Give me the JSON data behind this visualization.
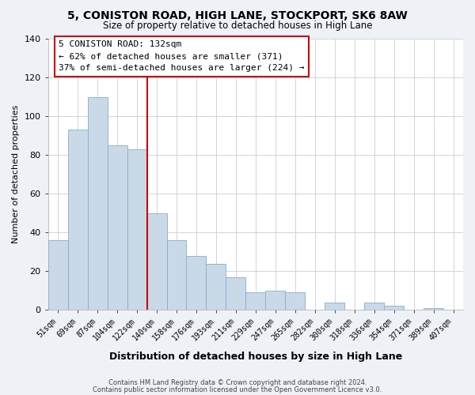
{
  "title": "5, CONISTON ROAD, HIGH LANE, STOCKPORT, SK6 8AW",
  "subtitle": "Size of property relative to detached houses in High Lane",
  "xlabel": "Distribution of detached houses by size in High Lane",
  "ylabel": "Number of detached properties",
  "bar_labels": [
    "51sqm",
    "69sqm",
    "87sqm",
    "104sqm",
    "122sqm",
    "140sqm",
    "158sqm",
    "176sqm",
    "193sqm",
    "211sqm",
    "229sqm",
    "247sqm",
    "265sqm",
    "282sqm",
    "300sqm",
    "318sqm",
    "336sqm",
    "354sqm",
    "371sqm",
    "389sqm",
    "407sqm"
  ],
  "bar_values": [
    36,
    93,
    110,
    85,
    83,
    50,
    36,
    28,
    24,
    17,
    9,
    10,
    9,
    0,
    4,
    0,
    4,
    2,
    0,
    1,
    0
  ],
  "bar_color": "#c9d9e8",
  "bar_edgecolor": "#8aabcc",
  "vline_x": 4.5,
  "vline_color": "#cc0000",
  "annotation_title": "5 CONISTON ROAD: 132sqm",
  "annotation_line1": "← 62% of detached houses are smaller (371)",
  "annotation_line2": "37% of semi-detached houses are larger (224) →",
  "annotation_box_edgecolor": "#cc0000",
  "ylim": [
    0,
    140
  ],
  "yticks": [
    0,
    20,
    40,
    60,
    80,
    100,
    120,
    140
  ],
  "footer1": "Contains HM Land Registry data © Crown copyright and database right 2024.",
  "footer2": "Contains public sector information licensed under the Open Government Licence v3.0.",
  "background_color": "#eef2f7",
  "plot_background": "#ffffff",
  "grid_color": "#c5ced8"
}
